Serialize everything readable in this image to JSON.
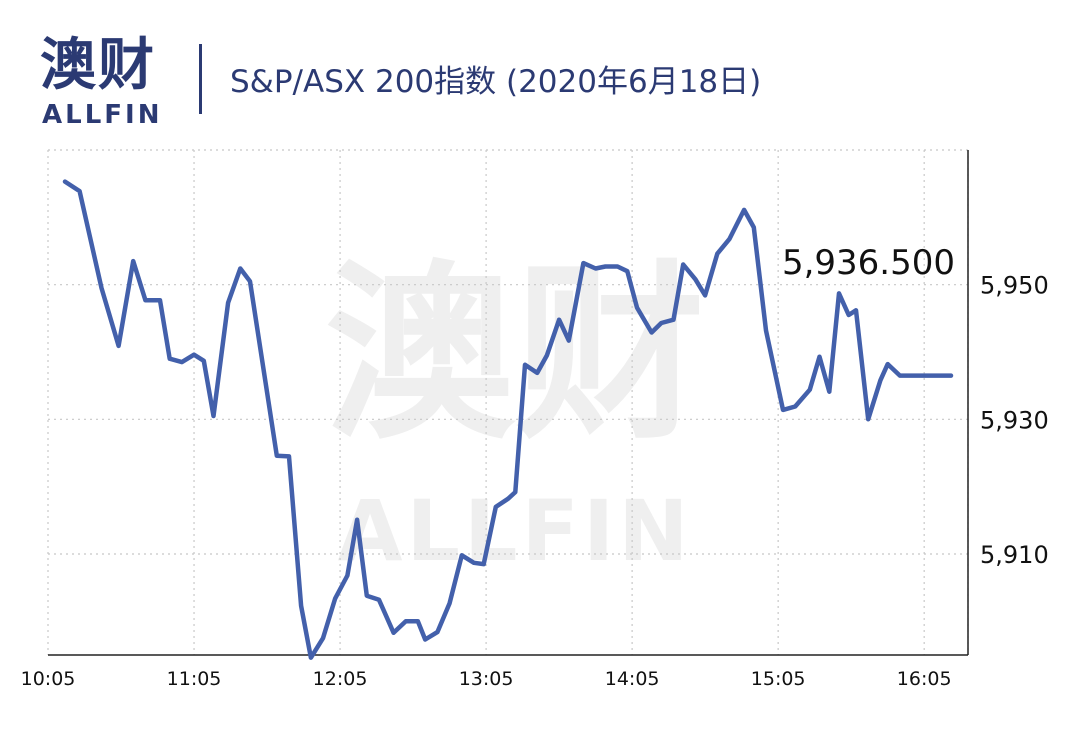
{
  "header": {
    "logo_cn": "澳财",
    "logo_en": "ALLFIN",
    "title": "S&P/ASX 200指数 (2020年6月18日)"
  },
  "watermark": {
    "cn": "澳财",
    "en": "ALLFIN"
  },
  "colors": {
    "brand": "#2b3a73",
    "line": "#4360ab",
    "grid": "#c8c8c8",
    "watermark": "#efefef"
  },
  "chart_data": {
    "type": "line",
    "title": "S&P/ASX 200指数 (2020年6月18日)",
    "xlabel": "",
    "ylabel": "",
    "x_ticks": [
      "10:05",
      "11:05",
      "12:05",
      "13:05",
      "14:05",
      "15:05",
      "16:05"
    ],
    "x_tick_minutes": [
      0,
      60,
      120,
      180,
      240,
      300,
      360
    ],
    "y_ticks": [
      "5,910",
      "5,930",
      "5,950"
    ],
    "y_tick_values": [
      5910,
      5930,
      5950
    ],
    "ylim": [
      5895,
      5970
    ],
    "xlim": [
      0,
      378
    ],
    "y_axis_position": "right",
    "grid": true,
    "last_value_label": "5,936.500",
    "series": [
      {
        "points": [
          [
            7,
            5965.3
          ],
          [
            13,
            5963.9
          ],
          [
            22,
            5949.5
          ],
          [
            29,
            5940.9
          ],
          [
            35,
            5953.5
          ],
          [
            40,
            5947.7
          ],
          [
            46,
            5947.7
          ],
          [
            50,
            5939.0
          ],
          [
            55,
            5938.5
          ],
          [
            60,
            5939.6
          ],
          [
            64,
            5938.7
          ],
          [
            68,
            5930.5
          ],
          [
            74,
            5947.3
          ],
          [
            79,
            5952.4
          ],
          [
            83,
            5950.5
          ],
          [
            94,
            5924.6
          ],
          [
            99,
            5924.5
          ],
          [
            104,
            5902.3
          ],
          [
            108,
            5894.6
          ],
          [
            113,
            5897.5
          ],
          [
            118,
            5903.4
          ],
          [
            123,
            5906.8
          ],
          [
            127,
            5915.1
          ],
          [
            131,
            5903.8
          ],
          [
            136,
            5903.2
          ],
          [
            142,
            5898.3
          ],
          [
            147,
            5900.0
          ],
          [
            152,
            5900.0
          ],
          [
            155,
            5897.3
          ],
          [
            160,
            5898.4
          ],
          [
            165,
            5902.7
          ],
          [
            170,
            5909.8
          ],
          [
            175,
            5908.7
          ],
          [
            179,
            5908.5
          ],
          [
            184,
            5917.0
          ],
          [
            189,
            5918.2
          ],
          [
            192,
            5919.2
          ],
          [
            196,
            5938.1
          ],
          [
            201,
            5936.9
          ],
          [
            205,
            5939.5
          ],
          [
            210,
            5944.8
          ],
          [
            214,
            5941.7
          ],
          [
            220,
            5953.2
          ],
          [
            225,
            5952.4
          ],
          [
            229,
            5952.7
          ],
          [
            234,
            5952.7
          ],
          [
            238,
            5952.0
          ],
          [
            242,
            5946.6
          ],
          [
            248,
            5942.9
          ],
          [
            252,
            5944.3
          ],
          [
            257,
            5944.8
          ],
          [
            261,
            5953.0
          ],
          [
            266,
            5950.8
          ],
          [
            270,
            5948.4
          ],
          [
            275,
            5954.6
          ],
          [
            280,
            5956.8
          ],
          [
            286,
            5961.1
          ],
          [
            290,
            5958.5
          ],
          [
            295,
            5943.2
          ],
          [
            302,
            5931.4
          ],
          [
            307,
            5931.9
          ],
          [
            313,
            5934.4
          ],
          [
            317,
            5939.3
          ],
          [
            321,
            5934.1
          ],
          [
            325,
            5948.7
          ],
          [
            329,
            5945.5
          ],
          [
            332,
            5946.2
          ],
          [
            337,
            5930.0
          ],
          [
            342,
            5935.8
          ],
          [
            345,
            5938.2
          ],
          [
            350,
            5936.5
          ],
          [
            358,
            5936.5
          ],
          [
            363,
            5936.5
          ],
          [
            371,
            5936.5
          ]
        ]
      }
    ]
  }
}
